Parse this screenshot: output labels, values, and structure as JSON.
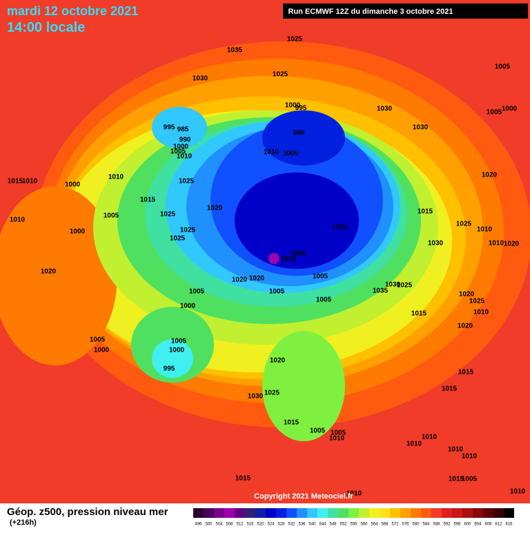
{
  "header": {
    "date": "mardi 12 octobre 2021",
    "time": "14:00 locale",
    "run": "Run ECMWF 12Z du dimanche 3 octobre 2021"
  },
  "copyright": "Copyright 2021 Meteociel.fr",
  "isobar_labels": [
    "1035",
    "1025",
    "1030",
    "1025",
    "1005",
    "1005",
    "1000",
    "1000",
    "995",
    "1030",
    "1030",
    "990",
    "995",
    "985",
    "990",
    "1000",
    "1005",
    "1010",
    "1010",
    "1005",
    "1010",
    "1000",
    "1015",
    "1010",
    "1025",
    "1020",
    "1015",
    "1020",
    "1010",
    "1005",
    "1025",
    "1015",
    "1025",
    "1010",
    "1000",
    "1025",
    "1025",
    "1020",
    "1010",
    "1020",
    "1030",
    "1005",
    "1010",
    "1020",
    "1020",
    "1020",
    "1005",
    "1030",
    "1025",
    "1035",
    "1005",
    "1005",
    "1005",
    "1020",
    "1025",
    "1000",
    "1010",
    "1015",
    "1020",
    "1005",
    "1005",
    "1000",
    "1000",
    "1020",
    "995",
    "1015",
    "1015",
    "1030",
    "1025",
    "1015",
    "1005",
    "1005",
    "1010",
    "1010",
    "1010",
    "1010",
    "1010",
    "1015",
    "1005",
    "1010",
    "1010",
    "1015"
  ],
  "legend": {
    "title": "Géop. z500, pression niveau mer",
    "subtitle": "(+216h)",
    "levels": [
      496,
      500,
      504,
      508,
      512,
      516,
      520,
      524,
      528,
      532,
      536,
      540,
      544,
      548,
      552,
      556,
      560,
      564,
      568,
      572,
      576,
      580,
      584,
      588,
      592,
      596,
      600,
      604,
      608,
      612,
      616
    ],
    "colors": [
      "#2a0030",
      "#4a0060",
      "#7a0090",
      "#a000b0",
      "#600080",
      "#30207a",
      "#1020a0",
      "#0000c8",
      "#0020e0",
      "#1050ff",
      "#2090ff",
      "#30c8ff",
      "#40f0f0",
      "#40e0a0",
      "#50e060",
      "#80f040",
      "#c0f030",
      "#f0f020",
      "#ffe020",
      "#ffc000",
      "#ffa000",
      "#ff7a00",
      "#ff5a10",
      "#f03c28",
      "#e02020",
      "#c81818",
      "#a81010",
      "#880808",
      "#600000",
      "#380000",
      "#000000"
    ]
  }
}
